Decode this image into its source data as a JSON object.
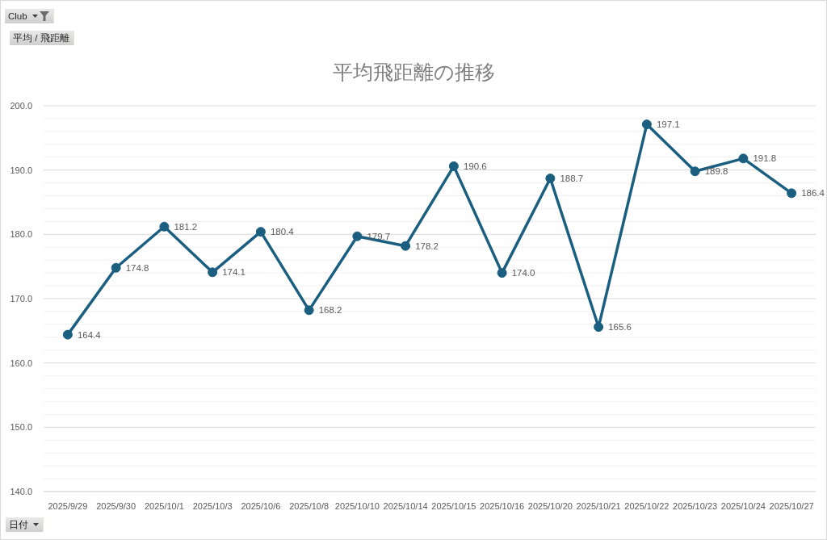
{
  "chart_data": {
    "type": "line",
    "title": "平均飛距離の推移",
    "annotations": [
      "Club",
      "平均 / 飛距離",
      "日付"
    ],
    "categories": [
      "2025/9/29",
      "2025/9/30",
      "2025/10/1",
      "2025/10/3",
      "2025/10/6",
      "2025/10/8",
      "2025/10/10",
      "2025/10/14",
      "2025/10/15",
      "2025/10/16",
      "2025/10/20",
      "2025/10/21",
      "2025/10/22",
      "2025/10/23",
      "2025/10/24",
      "2025/10/27"
    ],
    "values": [
      164.4,
      174.8,
      181.2,
      174.1,
      180.4,
      168.2,
      179.7,
      178.2,
      190.6,
      174.0,
      188.7,
      165.6,
      197.1,
      189.8,
      191.8,
      186.4
    ],
    "value_labels": [
      "164.4",
      "174.8",
      "181.2",
      "174.1",
      "180.4",
      "168.2",
      "179.7",
      "178.2",
      "190.6",
      "174.0",
      "188.7",
      "165.6",
      "197.1",
      "189.8",
      "191.8",
      "186.4"
    ],
    "color": "#1b5f80",
    "ylim": [
      140,
      200
    ],
    "yticks": [
      {
        "value": 140,
        "label": "140.0"
      },
      {
        "value": 142,
        "label": null
      },
      {
        "value": 144,
        "label": null
      },
      {
        "value": 146,
        "label": null
      },
      {
        "value": 148,
        "label": null
      },
      {
        "value": 150,
        "label": "150.0"
      },
      {
        "value": 152,
        "label": null
      },
      {
        "value": 154,
        "label": null
      },
      {
        "value": 156,
        "label": null
      },
      {
        "value": 158,
        "label": null
      },
      {
        "value": 160,
        "label": "160.0"
      },
      {
        "value": 162,
        "label": null
      },
      {
        "value": 164,
        "label": null
      },
      {
        "value": 166,
        "label": null
      },
      {
        "value": 168,
        "label": null
      },
      {
        "value": 170,
        "label": "170.0"
      },
      {
        "value": 172,
        "label": null
      },
      {
        "value": 174,
        "label": null
      },
      {
        "value": 176,
        "label": null
      },
      {
        "value": 178,
        "label": null
      },
      {
        "value": 180,
        "label": "180.0"
      },
      {
        "value": 182,
        "label": null
      },
      {
        "value": 184,
        "label": null
      },
      {
        "value": 186,
        "label": null
      },
      {
        "value": 188,
        "label": null
      },
      {
        "value": 190,
        "label": "190.0"
      },
      {
        "value": 192,
        "label": null
      },
      {
        "value": 194,
        "label": null
      },
      {
        "value": 196,
        "label": null
      },
      {
        "value": 198,
        "label": null
      },
      {
        "value": 200,
        "label": "200.0"
      }
    ],
    "grid": "y",
    "marker": "circle"
  }
}
